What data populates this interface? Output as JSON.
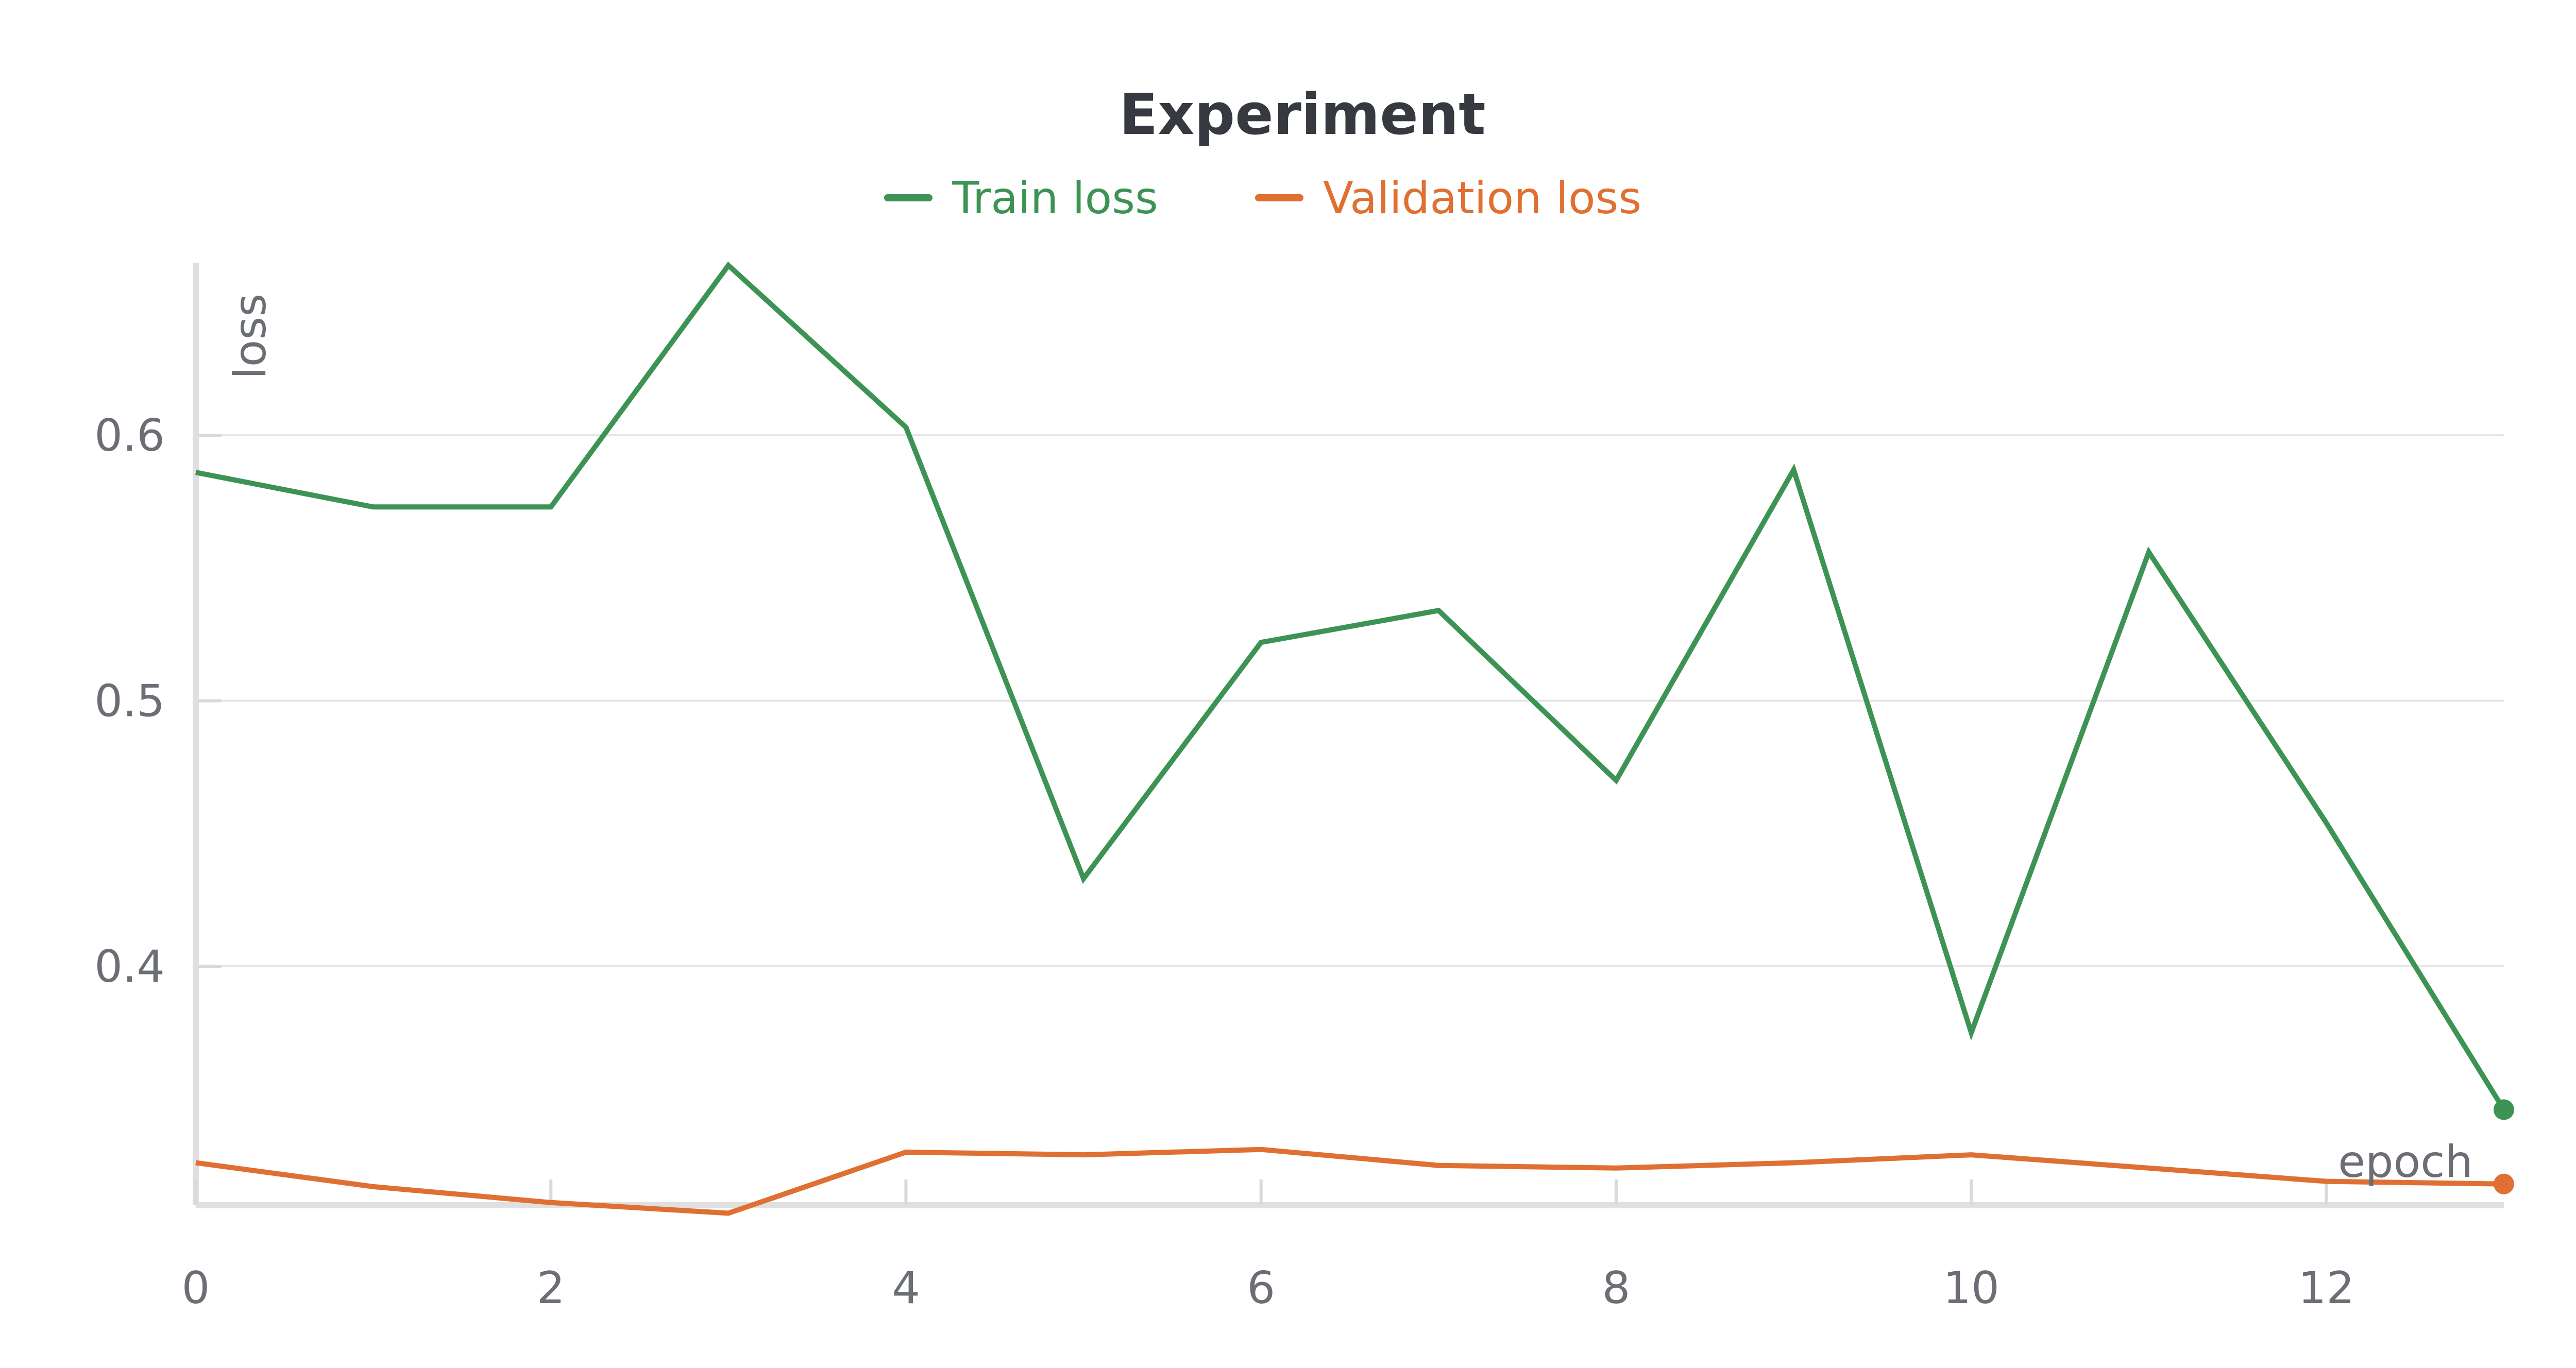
{
  "chart_data": {
    "type": "line",
    "title": "Experiment",
    "xlabel": "epoch",
    "ylabel": "loss",
    "x": [
      0,
      1,
      2,
      3,
      4,
      5,
      6,
      7,
      8,
      9,
      10,
      11,
      12,
      13
    ],
    "xlim": [
      0,
      13
    ],
    "ylim": [
      0.31,
      0.665
    ],
    "xticks": [
      "0",
      "2",
      "4",
      "6",
      "8",
      "10",
      "12"
    ],
    "yticks": [
      "0.4",
      "0.5",
      "0.6"
    ],
    "grid": "horizontal",
    "legend_position": "top-center",
    "series": [
      {
        "name": "Train loss",
        "color": "#3d9354",
        "values": [
          0.586,
          0.573,
          0.573,
          0.664,
          0.603,
          0.433,
          0.522,
          0.534,
          0.47,
          0.587,
          0.375,
          0.556,
          0.454,
          0.346
        ]
      },
      {
        "name": "Validation loss",
        "color": "#e06f32",
        "values": [
          0.326,
          0.317,
          0.311,
          0.307,
          0.33,
          0.329,
          0.331,
          0.325,
          0.324,
          0.326,
          0.329,
          0.324,
          0.319,
          0.318
        ]
      }
    ]
  }
}
